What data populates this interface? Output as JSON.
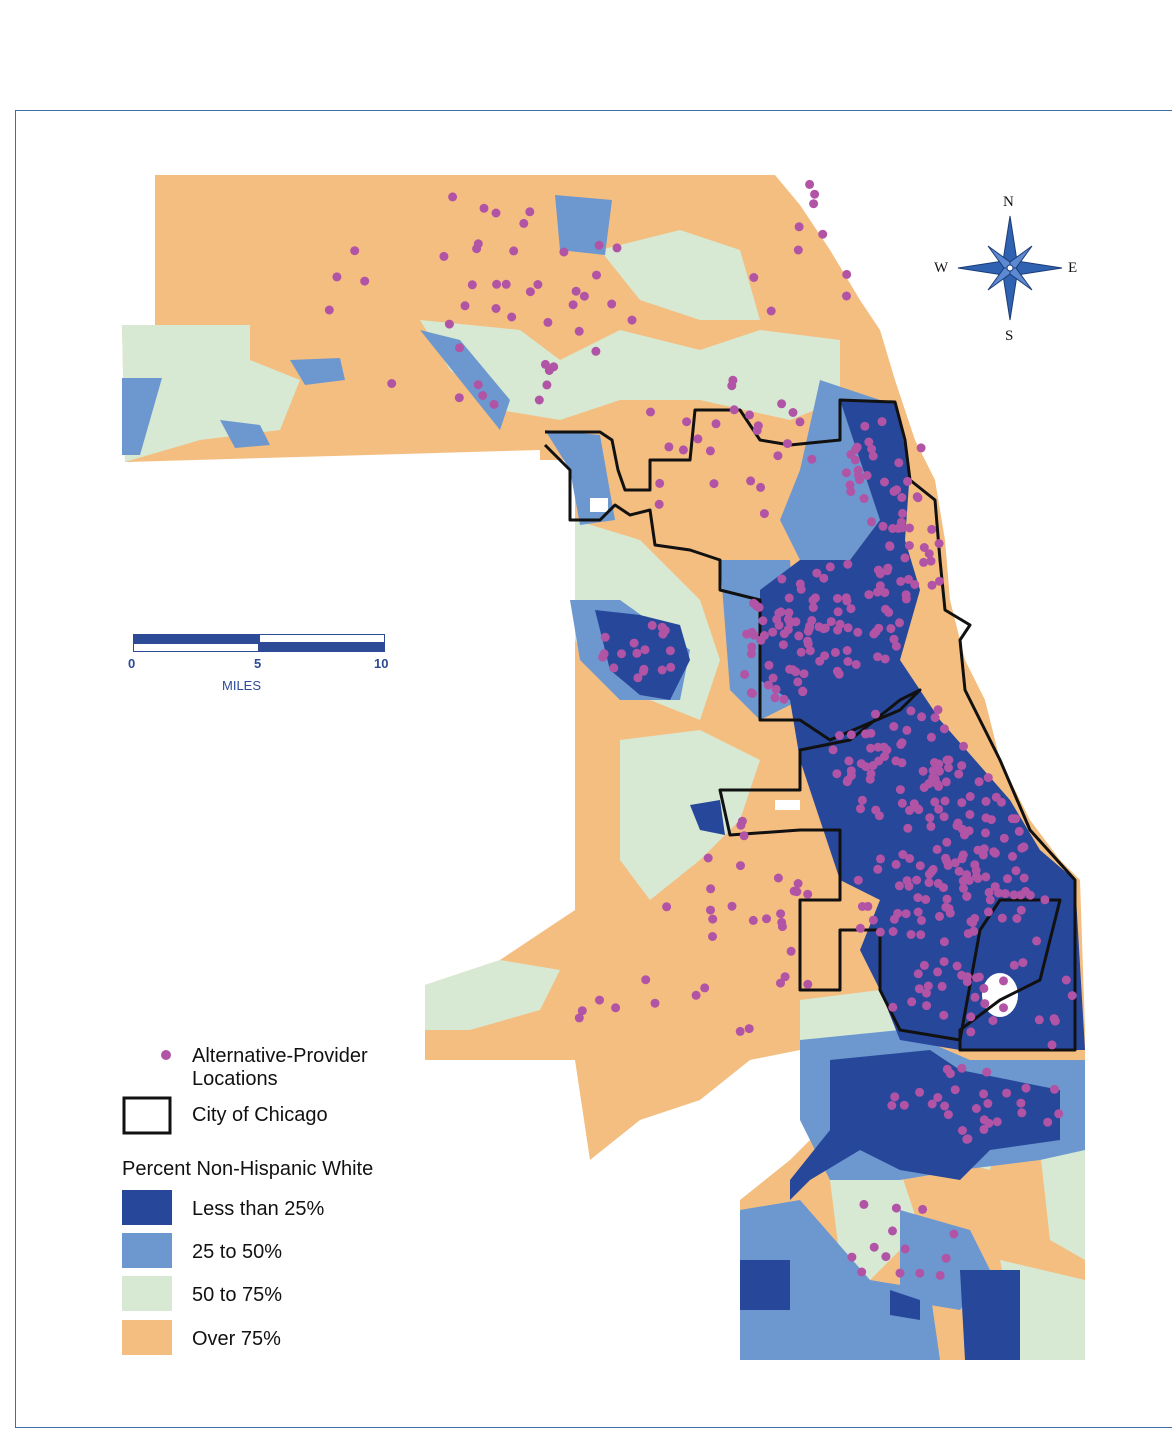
{
  "compass": {
    "north": "N",
    "south": "S",
    "east": "E",
    "west": "W"
  },
  "scale": {
    "ticks": [
      "0",
      "5",
      "10"
    ],
    "unit": "MILES"
  },
  "legend": {
    "points_label": "Alternative-Provider Locations",
    "boundary_label": "City of Chicago",
    "choropleth_title": "Percent Non-Hispanic White",
    "classes": [
      {
        "label": "Less than 25%",
        "color": "#27479a"
      },
      {
        "label": "25 to 50%",
        "color": "#6c98cf"
      },
      {
        "label": "50 to 75%",
        "color": "#d7e9d3"
      },
      {
        "label": "Over 75%",
        "color": "#f4be80"
      }
    ],
    "point_color": "#b254a6"
  }
}
